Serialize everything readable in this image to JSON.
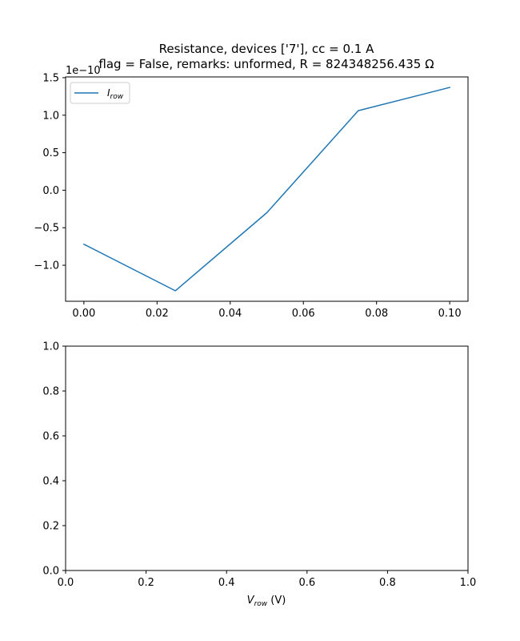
{
  "chart_data": [
    {
      "type": "line",
      "title": "Resistance, devices ['7'], cc = 0.1 A",
      "subtitle": "flag = False, remarks: unformed, R = 824348256.435 Ω",
      "xlabel": "",
      "ylabel": "",
      "y_offset_label": "1e−10",
      "x": [
        0.0,
        0.025,
        0.05,
        0.075,
        0.1
      ],
      "series": [
        {
          "name": "I_row",
          "name_main": "I",
          "name_sub": "row",
          "color": "#1f77b4",
          "values": [
            -0.72,
            -1.34,
            -0.3,
            1.06,
            1.37
          ]
        }
      ],
      "xlim": [
        -0.005,
        0.105
      ],
      "ylim": [
        -1.48,
        1.51
      ],
      "xticks": [
        0.0,
        0.02,
        0.04,
        0.06,
        0.08,
        0.1
      ],
      "xtick_labels": [
        "0.00",
        "0.02",
        "0.04",
        "0.06",
        "0.08",
        "0.10"
      ],
      "yticks": [
        -1.0,
        -0.5,
        0.0,
        0.5,
        1.0,
        1.5
      ],
      "ytick_labels": [
        "−1.0",
        "−0.5",
        "0.0",
        "0.5",
        "1.0",
        "1.5"
      ],
      "grid": false,
      "legend": "upper-left"
    },
    {
      "type": "line",
      "title": "",
      "xlabel_main": "V",
      "xlabel_sub": "row",
      "xlabel_unit": " (V)",
      "ylabel": "",
      "series": [],
      "xlim": [
        0,
        1
      ],
      "ylim": [
        0,
        1
      ],
      "xticks": [
        0.0,
        0.2,
        0.4,
        0.6,
        0.8,
        1.0
      ],
      "xtick_labels": [
        "0.0",
        "0.2",
        "0.4",
        "0.6",
        "0.8",
        "1.0"
      ],
      "yticks": [
        0.0,
        0.2,
        0.4,
        0.6,
        0.8,
        1.0
      ],
      "ytick_labels": [
        "0.0",
        "0.2",
        "0.4",
        "0.6",
        "0.8",
        "1.0"
      ],
      "grid": false,
      "legend": "none"
    }
  ]
}
